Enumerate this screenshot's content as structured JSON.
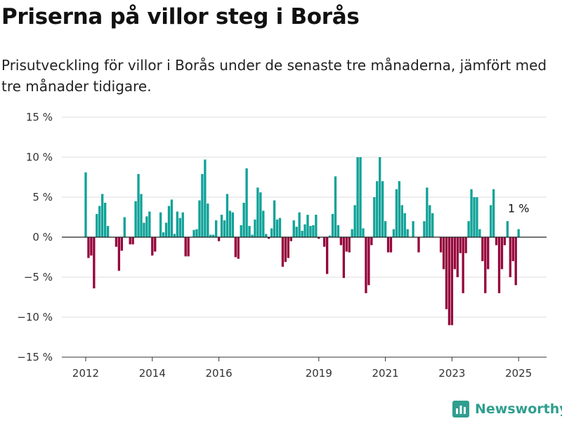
{
  "title": "Priserna på villor steg i Borås",
  "subtitle": "Prisutveckling för villor i Borås under de senaste tre månaderna, jämfört med tre månader tidigare.",
  "brand": {
    "name": "Newsworthy",
    "icon": "newsworthy-logo-icon"
  },
  "colors": {
    "positive": "#0fa298",
    "negative": "#95063c",
    "grid": "#dcdcdc",
    "zero": "#222222"
  },
  "chart_data": {
    "type": "bar",
    "title": "",
    "xlabel": "",
    "ylabel": "",
    "ylim": [
      -15,
      15
    ],
    "y_ticks": [
      15,
      10,
      5,
      0,
      -5,
      -10,
      -15
    ],
    "y_tick_labels": [
      "15 %",
      "10 %",
      "5 %",
      "0 %",
      "−5 %",
      "−10 %",
      "−15 %"
    ],
    "x_start": "2012-01",
    "x_ticks": [
      {
        "label": "2012",
        "date": "2012-01"
      },
      {
        "label": "2014",
        "date": "2014-01"
      },
      {
        "label": "2016",
        "date": "2016-01"
      },
      {
        "label": "2019",
        "date": "2019-01"
      },
      {
        "label": "2021",
        "date": "2021-01"
      },
      {
        "label": "2023",
        "date": "2023-01"
      },
      {
        "label": "2025",
        "date": "2025-01"
      }
    ],
    "grid": true,
    "annotation": {
      "text": "1 %",
      "date": "2025-01",
      "value": 1
    },
    "values": [
      8.1,
      -2.6,
      -2.3,
      -6.4,
      2.9,
      3.9,
      5.4,
      4.3,
      1.4,
      0,
      0,
      -1.2,
      -4.2,
      -1.7,
      2.5,
      0,
      -0.9,
      -0.9,
      4.5,
      7.9,
      5.4,
      1.8,
      2.6,
      3.2,
      -2.3,
      -1.8,
      0,
      3.1,
      0.6,
      1.8,
      3.9,
      4.7,
      0.4,
      3.2,
      2.4,
      3.1,
      -2.4,
      -2.4,
      0,
      0.9,
      1.0,
      4.6,
      7.9,
      9.7,
      4.2,
      0.3,
      0.3,
      2.1,
      -0.5,
      2.8,
      2.1,
      5.4,
      3.3,
      3.1,
      -2.5,
      -2.7,
      1.5,
      4.3,
      8.6,
      1.4,
      0.3,
      2.2,
      6.2,
      5.6,
      3.3,
      0.4,
      -0.2,
      1.1,
      4.6,
      2.2,
      2.4,
      -3.7,
      -3.1,
      -2.6,
      -0.5,
      2.1,
      1.3,
      3.1,
      0.8,
      1.6,
      2.8,
      1.4,
      1.5,
      2.8,
      -0.2,
      0,
      -1.2,
      -4.6,
      0.2,
      2.9,
      7.6,
      1.5,
      -1.0,
      -5.1,
      -1.8,
      -1.9,
      1.0,
      4.0,
      10,
      10,
      1.1,
      -7.0,
      -6.0,
      -1.0,
      5.0,
      7.0,
      10,
      7.0,
      2.0,
      -1.9,
      -1.9,
      1.0,
      6.0,
      7.0,
      4.0,
      3.0,
      1.0,
      0,
      2.0,
      0,
      -1.9,
      0,
      2.0,
      6.2,
      4.0,
      3.0,
      0,
      0,
      -1.9,
      -4.0,
      -9.0,
      -11.0,
      -11.0,
      -4.0,
      -5.0,
      -2.0,
      -7.0,
      -2.0,
      2.0,
      6.0,
      5.0,
      5.0,
      1.0,
      -3.0,
      -7.0,
      -4.0,
      4.0,
      6.0,
      -1.0,
      -7.0,
      -4.0,
      -1.0,
      2.0,
      -5.0,
      -3.0,
      -6.0,
      1.0
    ]
  }
}
